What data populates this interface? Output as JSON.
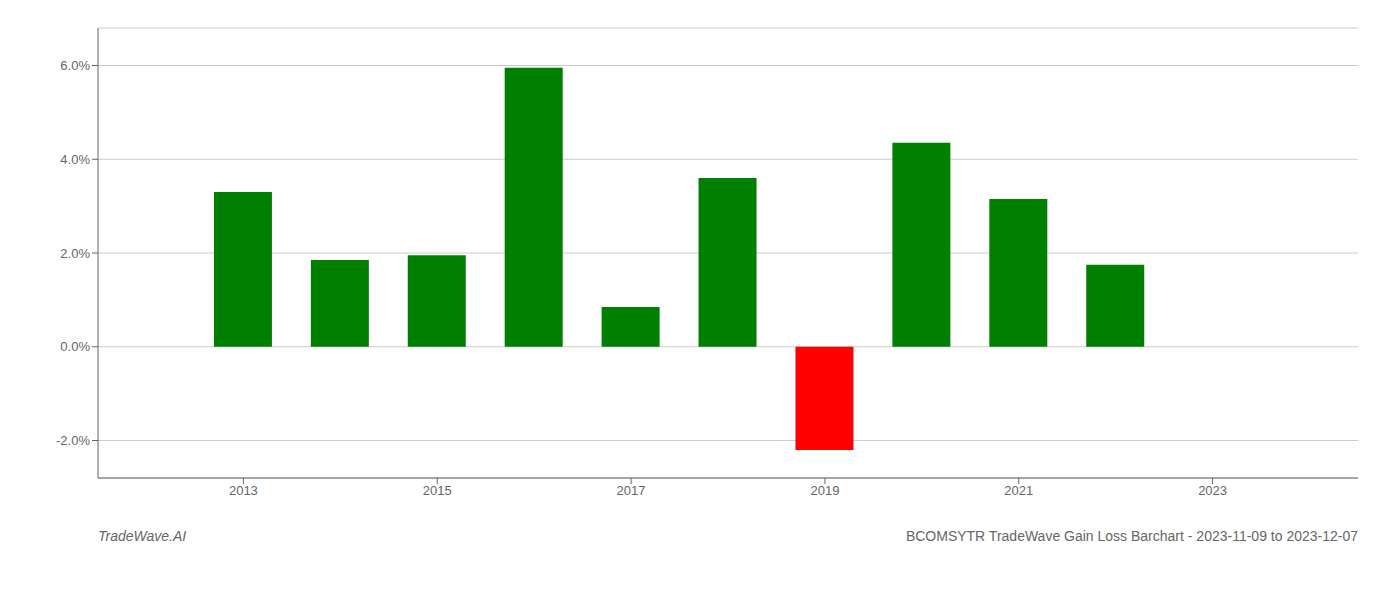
{
  "chart_data": {
    "type": "bar",
    "title": "BCOMSYTR TradeWave Gain Loss Barchart - 2023-11-09 to 2023-12-07",
    "annotations": [
      "TradeWave.AI"
    ],
    "x": [
      2013,
      2014,
      2015,
      2016,
      2017,
      2018,
      2019,
      2020,
      2021,
      2022
    ],
    "values": [
      0.033,
      0.0185,
      0.0195,
      0.0595,
      0.0085,
      0.036,
      -0.022,
      0.0435,
      0.0315,
      0.0175
    ],
    "colors": [
      "#008000",
      "#008000",
      "#008000",
      "#008000",
      "#008000",
      "#008000",
      "#ff0000",
      "#008000",
      "#008000",
      "#008000"
    ],
    "xlim": [
      2011.5,
      2024.5
    ],
    "xticks": [
      2013,
      2015,
      2017,
      2019,
      2021,
      2023
    ],
    "ylim": [
      -0.028,
      0.068
    ],
    "yticks": [
      {
        "value": -0.02,
        "label": "-2.0%"
      },
      {
        "value": 0.0,
        "label": "0.0%"
      },
      {
        "value": 0.02,
        "label": "2.0%"
      },
      {
        "value": 0.04,
        "label": "4.0%"
      },
      {
        "value": 0.06,
        "label": "6.0%"
      }
    ],
    "grid": true
  }
}
